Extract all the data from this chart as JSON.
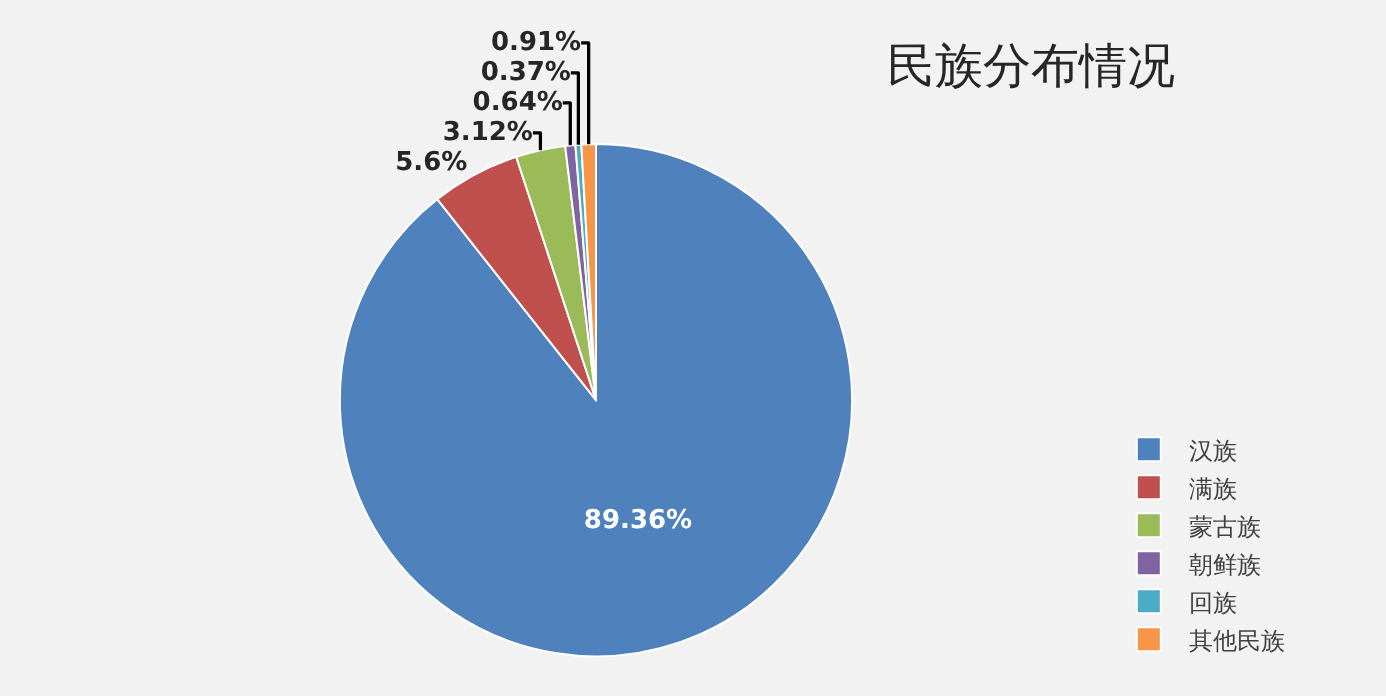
{
  "chart_data": {
    "type": "pie",
    "title": "民族分布情况",
    "categories": [
      "汉族",
      "满族",
      "蒙古族",
      "朝鲜族",
      "回族",
      "其他民族"
    ],
    "values": [
      89.36,
      5.6,
      3.12,
      0.64,
      0.37,
      0.91
    ],
    "value_labels": [
      "89.36%",
      "5.6%",
      "3.12%",
      "0.64%",
      "0.37%",
      "0.91%"
    ],
    "colors": [
      "#4f81bd",
      "#c0504d",
      "#9bbb59",
      "#8064a2",
      "#4bacc6",
      "#f79646"
    ],
    "legend": "bottom right"
  }
}
